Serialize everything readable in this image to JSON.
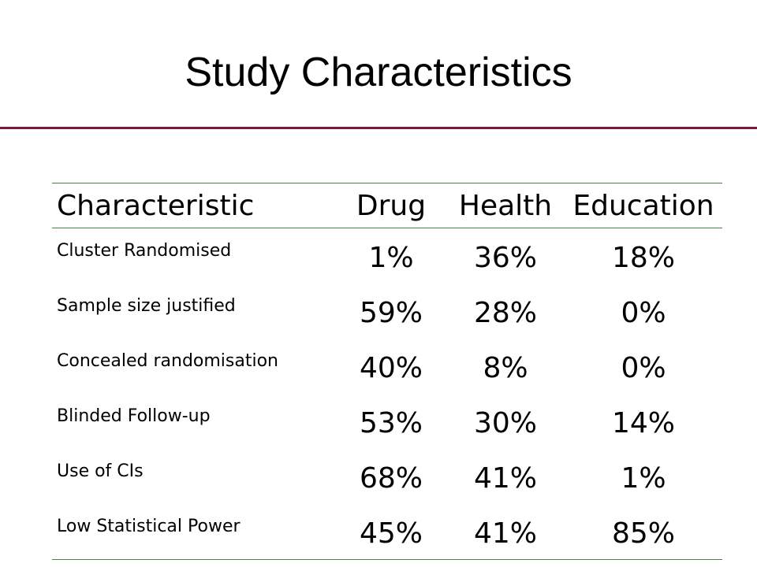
{
  "title": "Study Characteristics",
  "colors": {
    "title_rule": "#7b1a3a",
    "table_rule": "#3d8a3d"
  },
  "table": {
    "headers": [
      "Characteristic",
      "Drug",
      "Health",
      "Education"
    ],
    "rows": [
      [
        "Cluster  Randomised",
        "1%",
        "36%",
        "18%"
      ],
      [
        "Sample size justified",
        "59%",
        "28%",
        "0%"
      ],
      [
        "Concealed randomisation",
        "40%",
        "8%",
        "0%"
      ],
      [
        "Blinded Follow-up",
        "53%",
        "30%",
        "14%"
      ],
      [
        "Use of CIs",
        "68%",
        "41%",
        "1%"
      ],
      [
        "Low Statistical Power",
        "45%",
        "41%",
        "85%"
      ]
    ]
  }
}
